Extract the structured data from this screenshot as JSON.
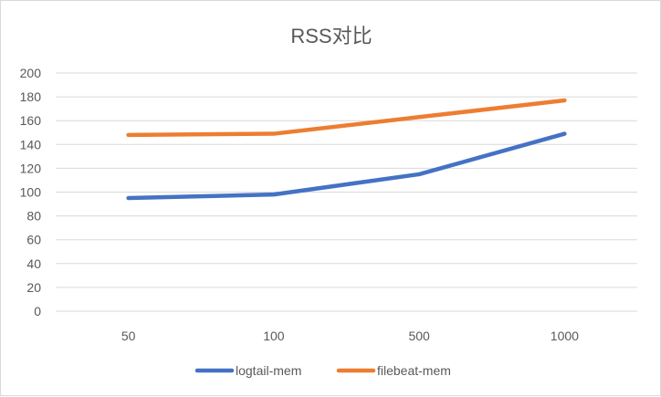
{
  "chart_data": {
    "type": "line",
    "title": "RSS对比",
    "xlabel": "",
    "ylabel": "",
    "categories": [
      "50",
      "100",
      "500",
      "1000"
    ],
    "series": [
      {
        "name": "logtail-mem",
        "color": "#4472C4",
        "values": [
          95,
          98,
          115,
          149
        ]
      },
      {
        "name": "filebeat-mem",
        "color": "#ED7D31",
        "values": [
          148,
          149,
          163,
          177
        ]
      }
    ],
    "ylim": [
      0,
      200
    ],
    "yticks": [
      "0",
      "20",
      "40",
      "60",
      "80",
      "100",
      "120",
      "140",
      "160",
      "180",
      "200"
    ],
    "grid": true,
    "legend_position": "bottom"
  }
}
